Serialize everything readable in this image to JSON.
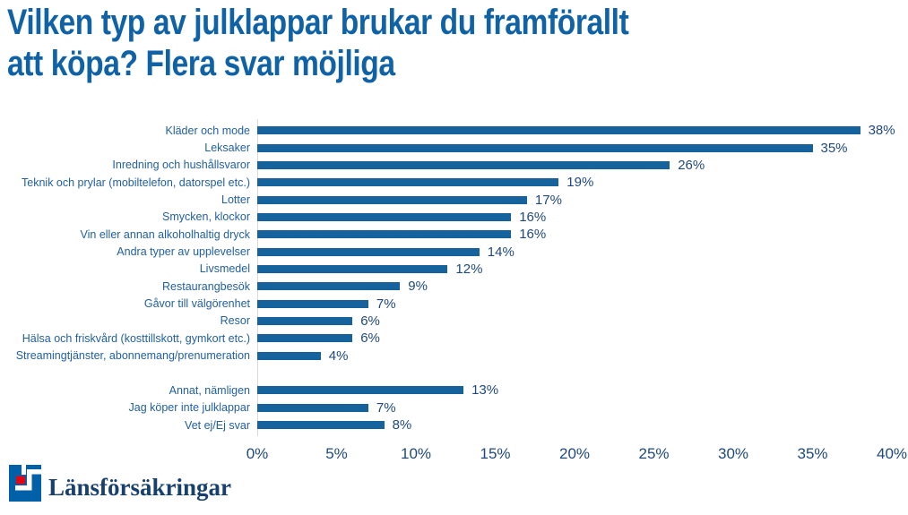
{
  "title": {
    "line1": "Vilken typ av julklappar brukar du framförallt",
    "line2": "att köpa? Flera svar möjliga"
  },
  "chart_data": {
    "type": "bar",
    "orientation": "horizontal",
    "title": "Vilken typ av julklappar brukar du framförallt att köpa? Flera svar möjliga",
    "categories": [
      "Kläder och mode",
      "Leksaker",
      "Inredning och hushållsvaror",
      "Teknik och prylar (mobiltelefon, datorspel etc.)",
      "Lotter",
      "Smycken, klockor",
      "Vin eller annan alkoholhaltig dryck",
      "Andra typer av upplevelser",
      "Livsmedel",
      "Restaurangbesök",
      "Gåvor till välgörenhet",
      "Resor",
      "Hälsa och friskvård (kosttillskott, gymkort etc.)",
      "Streamingtjänster, abonnemang/prenumeration",
      "Annat, nämligen",
      "Jag köper inte julklappar",
      "Vet ej/Ej svar"
    ],
    "values": [
      38,
      35,
      26,
      19,
      17,
      16,
      16,
      14,
      12,
      9,
      7,
      6,
      6,
      4,
      13,
      7,
      8
    ],
    "value_suffix": "%",
    "group_gap_before_index": 14,
    "xlim": [
      0,
      40
    ],
    "x_ticks": [
      "0%",
      "5%",
      "10%",
      "15%",
      "20%",
      "25%",
      "30%",
      "35%",
      "40%"
    ],
    "xlabel": "",
    "ylabel": "",
    "grid": false,
    "legend": null,
    "bar_color": "#15629D"
  },
  "colors": {
    "title": "#1062A7",
    "bar": "#15629D",
    "category_label": "#2260A0",
    "value_label": "#1F497D",
    "axis_tick_label": "#1F497D",
    "axis_line": "#D9D9D9",
    "logo_blue": "#0060A8",
    "logo_red": "#E30613",
    "logo_text": "#18406F"
  },
  "footer": {
    "logo_text": "Länsförsäkringar"
  }
}
